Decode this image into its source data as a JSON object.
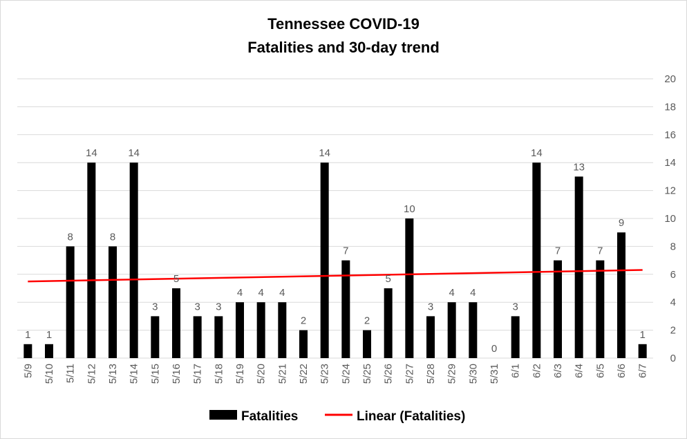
{
  "chart_data": {
    "type": "bar",
    "title": [
      "Tennessee COVID-19",
      "Fatalities and 30-day trend"
    ],
    "categories": [
      "5/9",
      "5/10",
      "5/11",
      "5/12",
      "5/13",
      "5/14",
      "5/15",
      "5/16",
      "5/17",
      "5/18",
      "5/19",
      "5/20",
      "5/21",
      "5/22",
      "5/23",
      "5/24",
      "5/25",
      "5/26",
      "5/27",
      "5/28",
      "5/29",
      "5/30",
      "5/31",
      "6/1",
      "6/2",
      "6/3",
      "6/4",
      "6/5",
      "6/6",
      "6/7"
    ],
    "series": [
      {
        "name": "Fatalities",
        "values": [
          1,
          1,
          8,
          14,
          8,
          14,
          3,
          5,
          3,
          3,
          4,
          4,
          4,
          2,
          14,
          7,
          2,
          5,
          10,
          3,
          4,
          4,
          0,
          3,
          14,
          7,
          13,
          7,
          9,
          1
        ],
        "color": "#000000",
        "data_labels": true
      }
    ],
    "trendline": {
      "name": "Linear (Fatalities)",
      "type": "linear",
      "color": "#ff0000"
    },
    "ylim": [
      0,
      20
    ],
    "yticks": [
      0,
      2,
      4,
      6,
      8,
      10,
      12,
      14,
      16,
      18,
      20
    ],
    "y_axis_side": "right",
    "xlabel": "",
    "ylabel": "",
    "grid": true,
    "legend_position": "bottom",
    "colors": {
      "bars": "#000000",
      "trend": "#ff0000",
      "grid": "#d9d9d9",
      "labels": "#595959"
    }
  }
}
